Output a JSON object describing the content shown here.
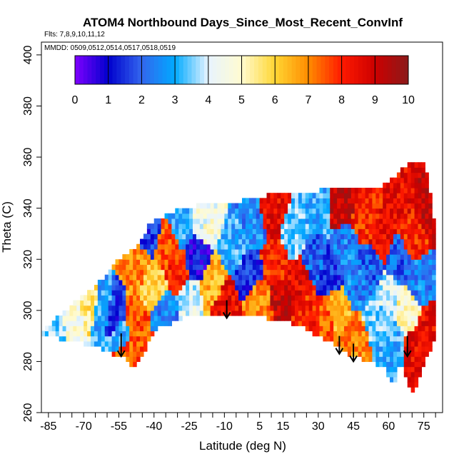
{
  "chart_data": {
    "type": "heatmap",
    "title": "ATOM4 Northbound Days_Since_Most_Recent_ConvInf",
    "flights_label": "Flts: 7,8,9,10,11,12",
    "dates_label": "MMDD: 0509,0512,0514,0517,0518,0519",
    "xlabel": "Latitude (deg N)",
    "ylabel": "Theta (C)",
    "xlim": [
      -88,
      83
    ],
    "ylim": [
      260,
      405
    ],
    "x_tick_labels": [
      "-85",
      "-70",
      "-55",
      "-40",
      "-25",
      "-10",
      "5",
      "15",
      "30",
      "45",
      "60",
      "75"
    ],
    "x_tick_values": [
      -85,
      -70,
      -55,
      -40,
      -25,
      -10,
      5,
      15,
      30,
      45,
      60,
      75
    ],
    "x_minor_step": 5,
    "y_tick_labels": [
      "260",
      "280",
      "300",
      "320",
      "340",
      "360",
      "380",
      "400"
    ],
    "y_tick_values": [
      260,
      280,
      300,
      320,
      340,
      360,
      380,
      400
    ],
    "grid": false,
    "colorbar": {
      "min": 0,
      "max": 10,
      "tick_labels": [
        "0",
        "1",
        "2",
        "3",
        "4",
        "5",
        "6",
        "7",
        "8",
        "9",
        "10"
      ],
      "colors": [
        "#7f00ff",
        "#0000cd",
        "#3366ee",
        "#00aaff",
        "#e8f4ff",
        "#fffbd0",
        "#ffd633",
        "#ff8c00",
        "#ff1a00",
        "#cc0000",
        "#8b1a1a"
      ]
    },
    "envelope": {
      "lat": [
        -88,
        -80,
        -70,
        -62,
        -58,
        -55,
        -52,
        -50,
        -48,
        -45,
        -42,
        -38,
        -33,
        -28,
        -22,
        -15,
        -8,
        -3,
        2,
        8,
        15,
        22,
        30,
        38,
        45,
        52,
        58,
        62,
        65,
        68,
        70,
        72,
        75,
        77,
        79,
        80
      ],
      "theta_top": [
        292,
        298,
        306,
        312,
        316,
        320,
        322,
        323,
        325,
        328,
        334,
        336,
        338,
        340,
        341,
        342,
        341,
        343,
        344,
        345,
        346,
        346,
        347,
        347,
        347,
        348,
        349,
        352,
        355,
        357,
        358,
        358,
        358,
        350,
        340,
        325
      ],
      "theta_bottom": [
        290,
        289,
        287,
        285,
        283,
        282,
        281,
        277,
        278,
        282,
        288,
        293,
        295,
        297,
        298,
        298,
        299,
        299,
        299,
        297,
        296,
        294,
        290,
        286,
        282,
        280,
        278,
        270,
        280,
        272,
        268,
        270,
        278,
        283,
        287,
        295
      ]
    },
    "field_regions": [
      {
        "lat": -82,
        "theta": 292,
        "value": 3.5
      },
      {
        "lat": -75,
        "theta": 297,
        "value": 4.5
      },
      {
        "lat": -68,
        "theta": 303,
        "value": 5.5
      },
      {
        "lat": -62,
        "theta": 300,
        "value": 3.0
      },
      {
        "lat": -57,
        "theta": 298,
        "value": 1.5
      },
      {
        "lat": -54,
        "theta": 290,
        "value": 3.0
      },
      {
        "lat": -52,
        "theta": 282,
        "value": 7.5
      },
      {
        "lat": -48,
        "theta": 295,
        "value": 7.5
      },
      {
        "lat": -47,
        "theta": 318,
        "value": 7.0
      },
      {
        "lat": -42,
        "theta": 330,
        "value": 1.5
      },
      {
        "lat": -40,
        "theta": 310,
        "value": 6.0
      },
      {
        "lat": -35,
        "theta": 300,
        "value": 2.5
      },
      {
        "lat": -35,
        "theta": 325,
        "value": 7.5
      },
      {
        "lat": -30,
        "theta": 315,
        "value": 8.0
      },
      {
        "lat": -28,
        "theta": 335,
        "value": 3.0
      },
      {
        "lat": -25,
        "theta": 305,
        "value": 4.0
      },
      {
        "lat": -22,
        "theta": 320,
        "value": 1.0
      },
      {
        "lat": -18,
        "theta": 335,
        "value": 4.5
      },
      {
        "lat": -15,
        "theta": 310,
        "value": 6.5
      },
      {
        "lat": -10,
        "theta": 302,
        "value": 8.5
      },
      {
        "lat": -5,
        "theta": 325,
        "value": 3.0
      },
      {
        "lat": 0,
        "theta": 315,
        "value": 1.5
      },
      {
        "lat": 2,
        "theta": 335,
        "value": 2.5
      },
      {
        "lat": 5,
        "theta": 303,
        "value": 7.0
      },
      {
        "lat": 10,
        "theta": 340,
        "value": 8.5
      },
      {
        "lat": 12,
        "theta": 318,
        "value": 8.0
      },
      {
        "lat": 15,
        "theta": 305,
        "value": 9.0
      },
      {
        "lat": 20,
        "theta": 330,
        "value": 3.5
      },
      {
        "lat": 22,
        "theta": 312,
        "value": 8.5
      },
      {
        "lat": 25,
        "theta": 298,
        "value": 8.0
      },
      {
        "lat": 28,
        "theta": 320,
        "value": 2.0
      },
      {
        "lat": 30,
        "theta": 340,
        "value": 3.0
      },
      {
        "lat": 32,
        "theta": 295,
        "value": 7.5
      },
      {
        "lat": 35,
        "theta": 315,
        "value": 1.5
      },
      {
        "lat": 38,
        "theta": 300,
        "value": 6.5
      },
      {
        "lat": 40,
        "theta": 342,
        "value": 9.0
      },
      {
        "lat": 42,
        "theta": 325,
        "value": 2.5
      },
      {
        "lat": 45,
        "theta": 290,
        "value": 7.0
      },
      {
        "lat": 47,
        "theta": 310,
        "value": 2.5
      },
      {
        "lat": 50,
        "theta": 335,
        "value": 8.0
      },
      {
        "lat": 52,
        "theta": 318,
        "value": 2.0
      },
      {
        "lat": 55,
        "theta": 298,
        "value": 3.5
      },
      {
        "lat": 57,
        "theta": 328,
        "value": 8.5
      },
      {
        "lat": 60,
        "theta": 305,
        "value": 4.0
      },
      {
        "lat": 62,
        "theta": 285,
        "value": 3.0
      },
      {
        "lat": 64,
        "theta": 320,
        "value": 2.0
      },
      {
        "lat": 66,
        "theta": 345,
        "value": 8.5
      },
      {
        "lat": 68,
        "theta": 300,
        "value": 5.0
      },
      {
        "lat": 70,
        "theta": 330,
        "value": 8.0
      },
      {
        "lat": 72,
        "theta": 285,
        "value": 8.5
      },
      {
        "lat": 74,
        "theta": 310,
        "value": 2.5
      },
      {
        "lat": 76,
        "theta": 340,
        "value": 9.0
      },
      {
        "lat": 78,
        "theta": 295,
        "value": 8.5
      }
    ],
    "arrows": [
      {
        "lat": -54,
        "theta_start": 291,
        "theta_end": 282
      },
      {
        "lat": -9,
        "theta_start": 304,
        "theta_end": 297
      },
      {
        "lat": 39,
        "theta_start": 290,
        "theta_end": 283
      },
      {
        "lat": 45,
        "theta_start": 287,
        "theta_end": 280
      },
      {
        "lat": 68,
        "theta_start": 290,
        "theta_end": 282
      }
    ]
  }
}
